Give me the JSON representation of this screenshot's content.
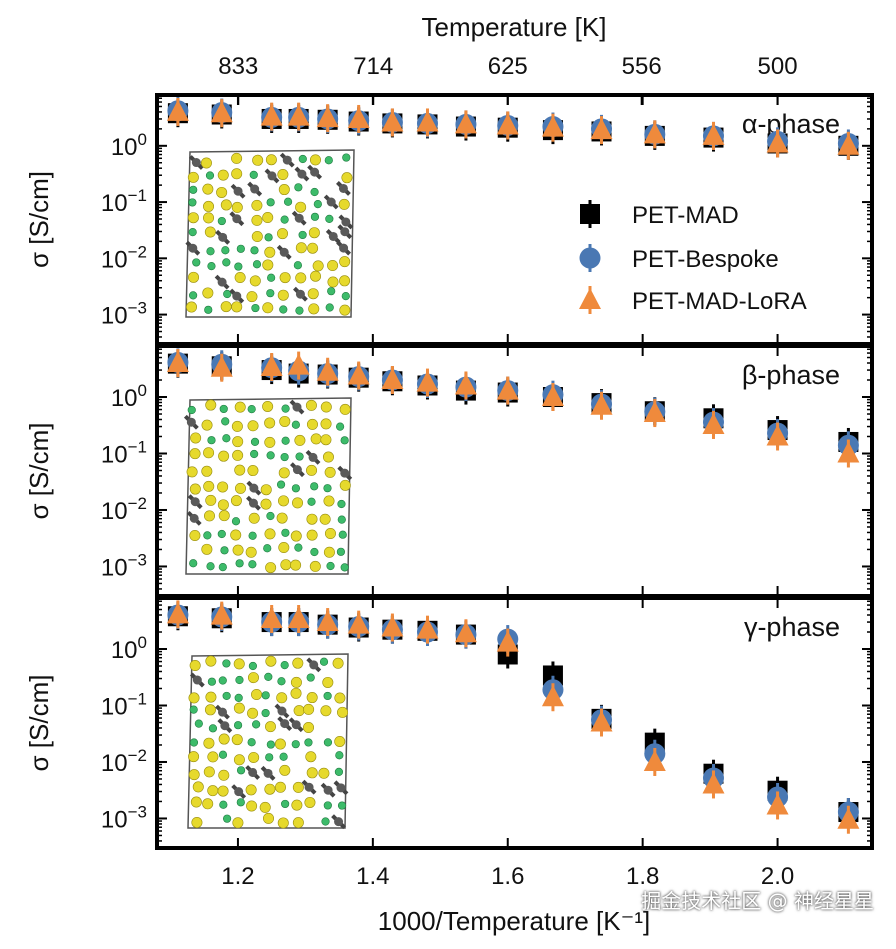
{
  "figure": {
    "top_axis_label": "Temperature [K]",
    "bottom_axis_label": "1000/Temperature [K⁻¹]",
    "y_axis_label": "σ [S/cm]",
    "watermark": "掘金技术社区 @ 神经星星"
  },
  "colors": {
    "PET-MAD": "#000000",
    "PET-Bespoke": "#4a78b3",
    "PET-MAD-LoRA": "#ef8a3c",
    "sulfur": "#e6d92c",
    "lithium": "#3dbb6a",
    "phosphorus": "#5a5a5a"
  },
  "chart_data": {
    "type": "scatter",
    "x_axis": {
      "label": "1000/Temperature [K⁻¹]",
      "range": [
        1.08,
        2.14
      ],
      "ticks": [
        1.2,
        1.4,
        1.6,
        1.8,
        2.0
      ],
      "tick_labels": [
        "1.2",
        "1.4",
        "1.6",
        "1.8",
        "2.0"
      ]
    },
    "top_axis": {
      "label": "Temperature [K]",
      "ticks": [
        833,
        714,
        625,
        556,
        500
      ],
      "tick_labels": [
        "833",
        "714",
        "625",
        "556",
        "500"
      ]
    },
    "y_axis": {
      "label": "σ [S/cm]",
      "scale": "log",
      "range": [
        0.0003,
        8
      ],
      "ticks": [
        0.001,
        0.01,
        0.1,
        1
      ],
      "tick_labels": [
        "10−3",
        "10−2",
        "10−1",
        "10⁰"
      ]
    },
    "legend": {
      "placement": "right of top panel",
      "entries": [
        "PET-MAD",
        "PET-Bespoke",
        "PET-MAD-LoRA"
      ]
    },
    "panels": [
      {
        "phase": "α-phase",
        "series": [
          {
            "name": "PET-MAD",
            "x": [
              1.111,
              1.176,
              1.25,
              1.29,
              1.333,
              1.379,
              1.429,
              1.481,
              1.538,
              1.6,
              1.667,
              1.739,
              1.818,
              1.905,
              2.0,
              2.105
            ],
            "y": [
              3.8,
              3.6,
              3.0,
              3.0,
              2.9,
              2.7,
              2.5,
              2.4,
              2.2,
              2.1,
              1.9,
              1.8,
              1.5,
              1.4,
              1.1,
              1.0
            ]
          },
          {
            "name": "PET-Bespoke",
            "x": [
              1.111,
              1.176,
              1.25,
              1.29,
              1.333,
              1.379,
              1.429,
              1.481,
              1.538,
              1.6,
              1.667,
              1.739,
              1.818,
              1.905,
              2.0,
              2.105
            ],
            "y": [
              4.2,
              3.9,
              3.2,
              3.2,
              3.0,
              2.8,
              2.6,
              2.5,
              2.4,
              2.3,
              2.2,
              2.0,
              1.6,
              1.5,
              1.2,
              1.1
            ]
          },
          {
            "name": "PET-MAD-LoRA",
            "x": [
              1.111,
              1.176,
              1.25,
              1.29,
              1.333,
              1.379,
              1.429,
              1.481,
              1.538,
              1.6,
              1.667,
              1.739,
              1.818,
              1.905,
              2.0,
              2.105
            ],
            "y": [
              4.0,
              3.8,
              3.3,
              3.3,
              3.1,
              3.0,
              2.6,
              2.6,
              2.4,
              2.3,
              2.1,
              1.9,
              1.6,
              1.5,
              1.1,
              1.0
            ]
          }
        ]
      },
      {
        "phase": "β-phase",
        "series": [
          {
            "name": "PET-MAD",
            "x": [
              1.111,
              1.176,
              1.25,
              1.29,
              1.333,
              1.379,
              1.429,
              1.481,
              1.538,
              1.6,
              1.667,
              1.739,
              1.818,
              1.905,
              2.0,
              2.105
            ],
            "y": [
              3.9,
              3.5,
              3.0,
              2.6,
              2.5,
              2.2,
              1.9,
              1.6,
              1.3,
              1.2,
              1.0,
              0.78,
              0.56,
              0.42,
              0.26,
              0.16
            ]
          },
          {
            "name": "PET-Bespoke",
            "x": [
              1.111,
              1.176,
              1.25,
              1.29,
              1.333,
              1.379,
              1.429,
              1.481,
              1.538,
              1.6,
              1.667,
              1.739,
              1.818,
              1.905,
              2.0,
              2.105
            ],
            "y": [
              4.1,
              3.8,
              3.3,
              2.9,
              2.6,
              2.3,
              2.0,
              1.7,
              1.5,
              1.3,
              1.1,
              0.75,
              0.55,
              0.36,
              0.23,
              0.14
            ]
          },
          {
            "name": "PET-MAD-LoRA",
            "x": [
              1.111,
              1.176,
              1.25,
              1.29,
              1.333,
              1.379,
              1.429,
              1.481,
              1.538,
              1.6,
              1.667,
              1.739,
              1.818,
              1.905,
              2.0,
              2.105
            ],
            "y": [
              4.0,
              3.3,
              3.4,
              3.6,
              2.8,
              2.4,
              2.0,
              1.8,
              1.6,
              1.3,
              1.0,
              0.7,
              0.52,
              0.32,
              0.2,
              0.1
            ]
          }
        ]
      },
      {
        "phase": "γ-phase",
        "series": [
          {
            "name": "PET-MAD",
            "x": [
              1.111,
              1.176,
              1.25,
              1.29,
              1.333,
              1.379,
              1.429,
              1.481,
              1.538,
              1.6,
              1.667,
              1.739,
              1.818,
              1.905,
              2.0,
              2.105
            ],
            "y": [
              3.8,
              3.5,
              3.0,
              3.0,
              2.7,
              2.4,
              2.2,
              2.1,
              1.8,
              0.8,
              0.34,
              0.058,
              0.022,
              0.0062,
              0.0031,
              0.0013
            ]
          },
          {
            "name": "PET-Bespoke",
            "x": [
              1.111,
              1.176,
              1.25,
              1.29,
              1.333,
              1.379,
              1.429,
              1.481,
              1.538,
              1.6,
              1.667,
              1.739,
              1.818,
              1.905,
              2.0,
              2.105
            ],
            "y": [
              4.0,
              3.7,
              3.0,
              3.0,
              2.7,
              2.5,
              2.2,
              2.0,
              1.8,
              1.5,
              0.19,
              0.056,
              0.014,
              0.0052,
              0.0024,
              0.0013
            ]
          },
          {
            "name": "PET-MAD-LoRA",
            "x": [
              1.111,
              1.176,
              1.25,
              1.29,
              1.333,
              1.379,
              1.429,
              1.481,
              1.538,
              1.6,
              1.667,
              1.739,
              1.818,
              1.905,
              2.0,
              2.105
            ],
            "y": [
              4.1,
              3.9,
              3.4,
              3.4,
              3.0,
              2.7,
              2.4,
              2.2,
              1.9,
              1.3,
              0.14,
              0.05,
              0.01,
              0.004,
              0.0017,
              0.00095
            ]
          }
        ]
      }
    ]
  }
}
